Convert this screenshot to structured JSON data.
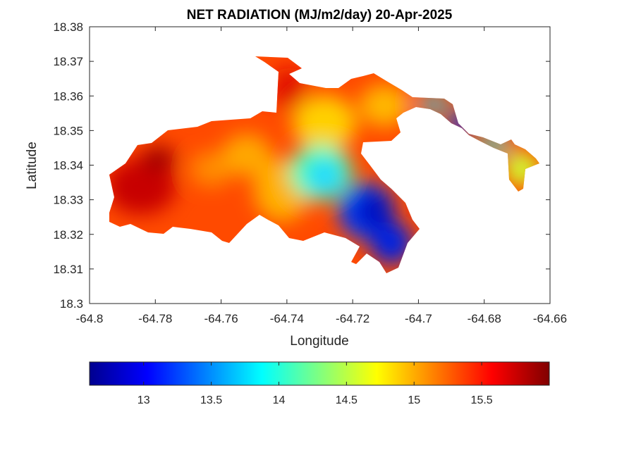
{
  "chart_data": {
    "type": "heatmap",
    "title": "NET RADIATION (MJ/m2/day) 20-Apr-2025",
    "xlabel": "Longitude",
    "ylabel": "Latitude",
    "xlim": [
      -64.8,
      -64.66
    ],
    "ylim": [
      18.3,
      18.38
    ],
    "x_ticks": [
      "-64.8",
      "-64.78",
      "-64.76",
      "-64.74",
      "-64.72",
      "-64.7",
      "-64.68",
      "-64.66"
    ],
    "y_ticks": [
      "18.3",
      "18.31",
      "18.32",
      "18.33",
      "18.34",
      "18.35",
      "18.36",
      "18.37",
      "18.38"
    ],
    "colormap": "jet",
    "colorbar": {
      "orientation": "horizontal",
      "placement": "below",
      "range": [
        12.6,
        16.0
      ],
      "ticks": [
        "13",
        "13.5",
        "14",
        "14.5",
        "15",
        "15.5"
      ]
    },
    "grid": false
  }
}
